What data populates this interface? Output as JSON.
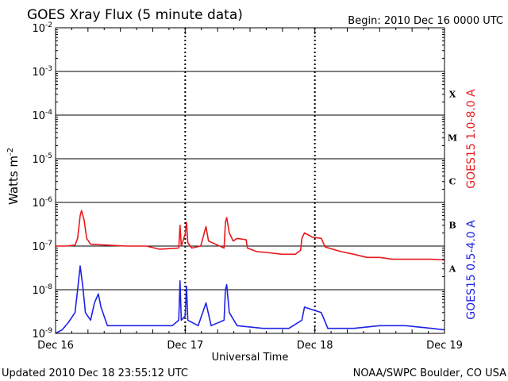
{
  "chart_data": {
    "type": "line",
    "title": "GOES Xray Flux (5 minute data)",
    "begin_label": "Begin:  2010 Dec 16 0000 UTC",
    "xlabel": "Universal Time",
    "ylabel": "Watts m",
    "ylabel_superscript": "-2",
    "y_scale": "log",
    "ylim": [
      1e-09,
      0.01
    ],
    "y_ticks": [
      {
        "value": 0.01,
        "base": "10",
        "exp": "-2"
      },
      {
        "value": 0.001,
        "base": "10",
        "exp": "-3"
      },
      {
        "value": 0.0001,
        "base": "10",
        "exp": "-4"
      },
      {
        "value": 1e-05,
        "base": "10",
        "exp": "-5"
      },
      {
        "value": 1e-06,
        "base": "10",
        "exp": "-6"
      },
      {
        "value": 1e-07,
        "base": "10",
        "exp": "-7"
      },
      {
        "value": 1e-08,
        "base": "10",
        "exp": "-8"
      },
      {
        "value": 1e-09,
        "base": "10",
        "exp": "-9"
      }
    ],
    "x_range_days": [
      0,
      3
    ],
    "x_ticks": [
      {
        "day": 0,
        "label": "Dec 16"
      },
      {
        "day": 1,
        "label": "Dec 17"
      },
      {
        "day": 2,
        "label": "Dec 18"
      },
      {
        "day": 3,
        "label": "Dec 19"
      }
    ],
    "flare_classes": [
      {
        "label": "X",
        "value": 0.0001
      },
      {
        "label": "M",
        "value": 1e-05
      },
      {
        "label": "C",
        "value": 1e-06
      },
      {
        "label": "B",
        "value": 1e-07
      },
      {
        "label": "A",
        "value": 1e-08
      }
    ],
    "grid": true,
    "series": [
      {
        "name": "GOES15 1.0-8.0 A",
        "color": "#e8191c",
        "points": [
          [
            0.0,
            1e-07
          ],
          [
            0.08,
            1e-07
          ],
          [
            0.15,
            1.05e-07
          ],
          [
            0.17,
            1.5e-07
          ],
          [
            0.19,
            5e-07
          ],
          [
            0.2,
            6.5e-07
          ],
          [
            0.22,
            4e-07
          ],
          [
            0.24,
            1.5e-07
          ],
          [
            0.27,
            1.1e-07
          ],
          [
            0.4,
            1.05e-07
          ],
          [
            0.55,
            1e-07
          ],
          [
            0.7,
            1e-07
          ],
          [
            0.8,
            8.5e-08
          ],
          [
            0.9,
            8.8e-08
          ],
          [
            0.95,
            9e-08
          ],
          [
            0.96,
            3e-07
          ],
          [
            0.97,
            1e-07
          ],
          [
            1.0,
            1.9e-07
          ],
          [
            1.01,
            3.5e-07
          ],
          [
            1.02,
            1.2e-07
          ],
          [
            1.05,
            9e-08
          ],
          [
            1.12,
            1e-07
          ],
          [
            1.16,
            2.8e-07
          ],
          [
            1.18,
            1.3e-07
          ],
          [
            1.3,
            9e-08
          ],
          [
            1.31,
            3.5e-07
          ],
          [
            1.32,
            4.5e-07
          ],
          [
            1.34,
            2e-07
          ],
          [
            1.37,
            1.3e-07
          ],
          [
            1.4,
            1.5e-07
          ],
          [
            1.47,
            1.4e-07
          ],
          [
            1.48,
            9e-08
          ],
          [
            1.55,
            7.5e-08
          ],
          [
            1.65,
            7e-08
          ],
          [
            1.75,
            6.5e-08
          ],
          [
            1.85,
            6.5e-08
          ],
          [
            1.89,
            8e-08
          ],
          [
            1.9,
            1.5e-07
          ],
          [
            1.92,
            2e-07
          ],
          [
            1.95,
            1.8e-07
          ],
          [
            1.98,
            1.6e-07
          ],
          [
            2.05,
            1.5e-07
          ],
          [
            2.08,
            9.5e-08
          ],
          [
            2.2,
            7.5e-08
          ],
          [
            2.3,
            6.5e-08
          ],
          [
            2.4,
            5.5e-08
          ],
          [
            2.5,
            5.5e-08
          ],
          [
            2.6,
            5e-08
          ],
          [
            2.7,
            5e-08
          ],
          [
            2.8,
            5e-08
          ],
          [
            2.9,
            5e-08
          ],
          [
            3.0,
            4.8e-08
          ]
        ]
      },
      {
        "name": "GOES15 0.5-4.0 A",
        "color": "#1f22e6",
        "points": [
          [
            0.0,
            1e-09
          ],
          [
            0.05,
            1.2e-09
          ],
          [
            0.1,
            1.8e-09
          ],
          [
            0.15,
            3e-09
          ],
          [
            0.17,
            1e-08
          ],
          [
            0.19,
            3.5e-08
          ],
          [
            0.21,
            1.2e-08
          ],
          [
            0.23,
            3e-09
          ],
          [
            0.27,
            2e-09
          ],
          [
            0.3,
            5e-09
          ],
          [
            0.33,
            8e-09
          ],
          [
            0.35,
            4e-09
          ],
          [
            0.4,
            1.5e-09
          ],
          [
            0.6,
            1.5e-09
          ],
          [
            0.9,
            1.5e-09
          ],
          [
            0.95,
            2e-09
          ],
          [
            0.96,
            1.6e-08
          ],
          [
            0.97,
            2e-09
          ],
          [
            1.0,
            2.5e-09
          ],
          [
            1.01,
            1.2e-08
          ],
          [
            1.02,
            2e-09
          ],
          [
            1.1,
            1.5e-09
          ],
          [
            1.16,
            5e-09
          ],
          [
            1.2,
            1.5e-09
          ],
          [
            1.3,
            2e-09
          ],
          [
            1.31,
            1e-08
          ],
          [
            1.32,
            1.3e-08
          ],
          [
            1.34,
            3e-09
          ],
          [
            1.4,
            1.5e-09
          ],
          [
            1.6,
            1.3e-09
          ],
          [
            1.8,
            1.3e-09
          ],
          [
            1.9,
            2e-09
          ],
          [
            1.92,
            4e-09
          ],
          [
            1.98,
            3.5e-09
          ],
          [
            2.05,
            3e-09
          ],
          [
            2.1,
            1.3e-09
          ],
          [
            2.3,
            1.3e-09
          ],
          [
            2.5,
            1.5e-09
          ],
          [
            2.7,
            1.5e-09
          ],
          [
            2.9,
            1.3e-09
          ],
          [
            3.0,
            1.2e-09
          ]
        ]
      }
    ]
  },
  "footer": {
    "updated": "Updated 2010 Dec 18 23:55:12 UTC",
    "credit": "NOAA/SWPC Boulder, CO USA"
  }
}
